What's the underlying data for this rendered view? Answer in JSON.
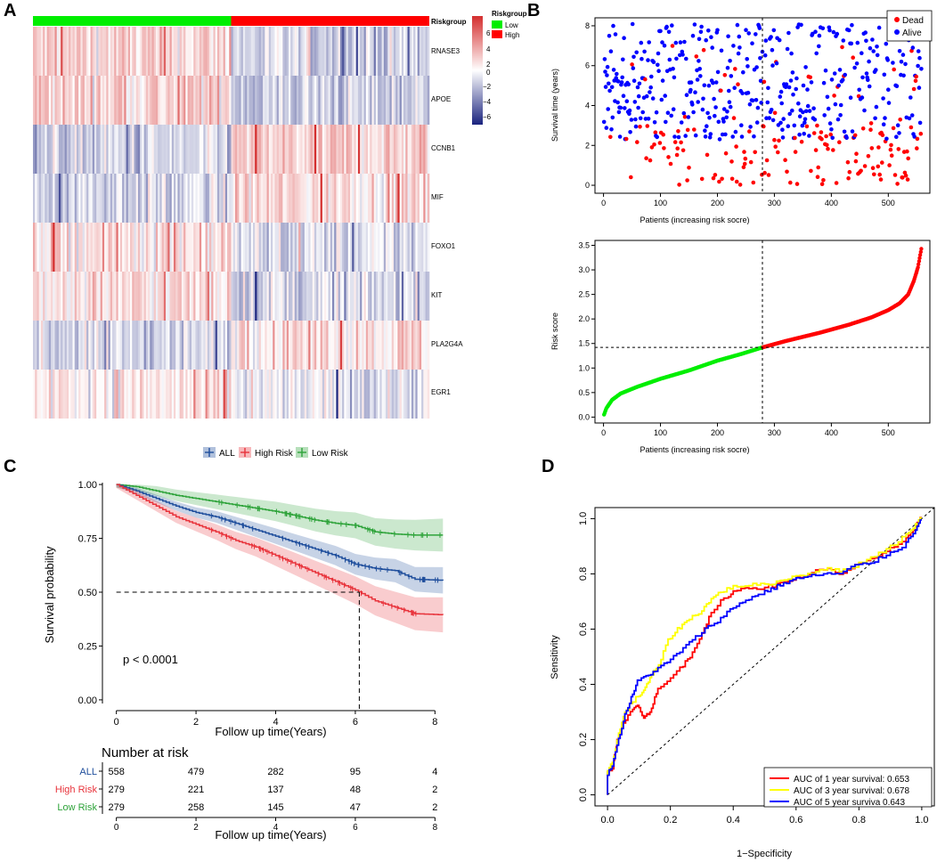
{
  "panels": {
    "A": "A",
    "B": "B",
    "C": "C",
    "D": "D"
  },
  "colors": {
    "low": "#00ee00",
    "high": "#ff0000",
    "alive": "#0000ff",
    "dead": "#ff0000",
    "heat_high": "#d42e2e",
    "heat_mid": "#ffffff",
    "heat_low": "#1a237e",
    "all": "#1f4e9c",
    "high_risk": "#e8333b",
    "low_risk": "#2ea33a",
    "roc1": "#ff0000",
    "roc3": "#ffff00",
    "roc5": "#0000ff"
  },
  "chart_data": [
    {
      "id": "A",
      "type": "heatmap",
      "genes": [
        "RNASE3",
        "APOE",
        "CCNB1",
        "MIF",
        "FOXO1",
        "KIT",
        "PLA2G4A",
        "EGR1"
      ],
      "gene_trend": [
        0.55,
        0.6,
        -0.6,
        -0.5,
        0.45,
        0.45,
        -0.5,
        0.3
      ],
      "annotation_label": "Riskgroup",
      "group_counts": {
        "Low": 279,
        "High": 279
      },
      "legend_title": "Riskgroup",
      "legend_items": [
        "Low",
        "High"
      ],
      "colorbar_ticks": [
        "6",
        "4",
        "2",
        "0",
        "−2",
        "−4",
        "−6"
      ],
      "colorbar_range": [
        -7,
        7
      ]
    },
    {
      "id": "B_top",
      "type": "scatter",
      "xlabel": "Patients (increasing risk socre)",
      "ylabel": "Survival time (years)",
      "xticks": [
        "0",
        "100",
        "200",
        "300",
        "400",
        "500"
      ],
      "yticks": [
        "0",
        "2",
        "4",
        "6",
        "8"
      ],
      "xlim": [
        -15,
        573
      ],
      "ylim": [
        -0.4,
        8.4
      ],
      "cutoff_x": 279,
      "n": 558,
      "legend": [
        "Dead",
        "Alive"
      ]
    },
    {
      "id": "B_bottom",
      "type": "scatter",
      "xlabel": "Patients (increasing risk socre)",
      "ylabel": "Risk score",
      "xticks": [
        "0",
        "100",
        "200",
        "300",
        "400",
        "500"
      ],
      "yticks": [
        "0.0",
        "0.5",
        "1.0",
        "1.5",
        "2.0",
        "2.5",
        "3.0",
        "3.5"
      ],
      "xlim": [
        -15,
        573
      ],
      "ylim": [
        -0.12,
        3.6
      ],
      "cutoff_x": 279,
      "cutoff_y": 1.42,
      "curve_points": [
        [
          1,
          0.05
        ],
        [
          5,
          0.18
        ],
        [
          15,
          0.35
        ],
        [
          30,
          0.48
        ],
        [
          60,
          0.62
        ],
        [
          100,
          0.78
        ],
        [
          150,
          0.95
        ],
        [
          200,
          1.15
        ],
        [
          240,
          1.28
        ],
        [
          279,
          1.42
        ],
        [
          320,
          1.55
        ],
        [
          380,
          1.72
        ],
        [
          430,
          1.88
        ],
        [
          470,
          2.03
        ],
        [
          500,
          2.18
        ],
        [
          520,
          2.32
        ],
        [
          535,
          2.5
        ],
        [
          545,
          2.78
        ],
        [
          552,
          3.05
        ],
        [
          558,
          3.43
        ]
      ]
    },
    {
      "id": "C",
      "type": "line",
      "legend": [
        "ALL",
        "High Risk",
        "Low Risk"
      ],
      "ylabel": "Survival probability",
      "xlabel": "Follow up time(Years)",
      "xticks": [
        "0",
        "2",
        "4",
        "6",
        "8"
      ],
      "yticks": [
        "0.00",
        "0.25",
        "0.50",
        "0.75",
        "1.00"
      ],
      "xlim": [
        -0.35,
        8.35
      ],
      "ylim": [
        -0.05,
        1.05
      ],
      "pvalue": "p < 0.0001",
      "median_time": 6.1,
      "series": [
        {
          "name": "Low Risk",
          "points": [
            [
              0,
              1
            ],
            [
              0.5,
              0.99
            ],
            [
              1,
              0.97
            ],
            [
              1.5,
              0.95
            ],
            [
              2,
              0.935
            ],
            [
              2.5,
              0.92
            ],
            [
              3,
              0.905
            ],
            [
              3.5,
              0.89
            ],
            [
              4,
              0.875
            ],
            [
              4.5,
              0.855
            ],
            [
              5,
              0.835
            ],
            [
              5.5,
              0.82
            ],
            [
              6,
              0.81
            ],
            [
              6.5,
              0.78
            ],
            [
              7,
              0.77
            ],
            [
              7.5,
              0.765
            ],
            [
              8.2,
              0.765
            ]
          ],
          "band": 0.075
        },
        {
          "name": "ALL",
          "points": [
            [
              0,
              1
            ],
            [
              0.5,
              0.97
            ],
            [
              1,
              0.935
            ],
            [
              1.5,
              0.9
            ],
            [
              2,
              0.87
            ],
            [
              2.5,
              0.85
            ],
            [
              3,
              0.82
            ],
            [
              3.5,
              0.79
            ],
            [
              4,
              0.76
            ],
            [
              4.5,
              0.73
            ],
            [
              5,
              0.7
            ],
            [
              5.5,
              0.67
            ],
            [
              6,
              0.63
            ],
            [
              6.5,
              0.61
            ],
            [
              7,
              0.6
            ],
            [
              7.5,
              0.56
            ],
            [
              8.2,
              0.555
            ]
          ],
          "band": 0.06
        },
        {
          "name": "High Risk",
          "points": [
            [
              0,
              1
            ],
            [
              0.5,
              0.95
            ],
            [
              1,
              0.9
            ],
            [
              1.5,
              0.85
            ],
            [
              2,
              0.815
            ],
            [
              2.5,
              0.78
            ],
            [
              3,
              0.74
            ],
            [
              3.5,
              0.71
            ],
            [
              4,
              0.67
            ],
            [
              4.5,
              0.63
            ],
            [
              5,
              0.59
            ],
            [
              5.5,
              0.55
            ],
            [
              6,
              0.51
            ],
            [
              6.5,
              0.46
            ],
            [
              7,
              0.43
            ],
            [
              7.5,
              0.4
            ],
            [
              8.2,
              0.395
            ]
          ],
          "band": 0.08
        }
      ],
      "risk_table_title": "Number at risk",
      "risk_table": [
        {
          "label": "ALL",
          "values": [
            "558",
            "479",
            "282",
            "95",
            "4"
          ]
        },
        {
          "label": "High Risk",
          "values": [
            "279",
            "221",
            "137",
            "48",
            "2"
          ]
        },
        {
          "label": "Low Risk",
          "values": [
            "279",
            "258",
            "145",
            "47",
            "2"
          ]
        }
      ],
      "risk_xlabel": "Follow up time(Years)"
    },
    {
      "id": "D",
      "type": "line",
      "xlabel": "1−Specificity",
      "ylabel": "Sensitivity",
      "xticks": [
        "0.0",
        "0.2",
        "0.4",
        "0.6",
        "0.8",
        "1.0"
      ],
      "yticks": [
        "0.0",
        "0.2",
        "0.4",
        "0.6",
        "0.8",
        "1.0"
      ],
      "xlim": [
        -0.04,
        1.04
      ],
      "ylim": [
        -0.04,
        1.04
      ],
      "legend": [
        "AUC of 1 year survival:  0.653",
        "AUC of 3 year survival:  0.678",
        "AUC of 5 year surviva 0.643"
      ],
      "series": [
        {
          "name": "AUC of 1 year survival",
          "points": [
            [
              0,
              0
            ],
            [
              0,
              0.07
            ],
            [
              0.02,
              0.1
            ],
            [
              0.03,
              0.18
            ],
            [
              0.05,
              0.24
            ],
            [
              0.08,
              0.3
            ],
            [
              0.1,
              0.33
            ],
            [
              0.12,
              0.28
            ],
            [
              0.14,
              0.3
            ],
            [
              0.16,
              0.37
            ],
            [
              0.2,
              0.41
            ],
            [
              0.24,
              0.46
            ],
            [
              0.27,
              0.5
            ],
            [
              0.3,
              0.57
            ],
            [
              0.33,
              0.64
            ],
            [
              0.37,
              0.7
            ],
            [
              0.4,
              0.73
            ],
            [
              0.45,
              0.75
            ],
            [
              0.5,
              0.75
            ],
            [
              0.55,
              0.76
            ],
            [
              0.6,
              0.78
            ],
            [
              0.65,
              0.8
            ],
            [
              0.7,
              0.82
            ],
            [
              0.75,
              0.8
            ],
            [
              0.8,
              0.83
            ],
            [
              0.85,
              0.85
            ],
            [
              0.9,
              0.88
            ],
            [
              0.95,
              0.92
            ],
            [
              0.98,
              0.96
            ],
            [
              1,
              1
            ]
          ]
        },
        {
          "name": "AUC of 3 year survival",
          "points": [
            [
              0,
              0
            ],
            [
              0,
              0.08
            ],
            [
              0.02,
              0.12
            ],
            [
              0.04,
              0.22
            ],
            [
              0.06,
              0.3
            ],
            [
              0.1,
              0.35
            ],
            [
              0.12,
              0.38
            ],
            [
              0.14,
              0.42
            ],
            [
              0.17,
              0.47
            ],
            [
              0.2,
              0.56
            ],
            [
              0.23,
              0.6
            ],
            [
              0.26,
              0.63
            ],
            [
              0.3,
              0.66
            ],
            [
              0.33,
              0.7
            ],
            [
              0.36,
              0.73
            ],
            [
              0.4,
              0.75
            ],
            [
              0.45,
              0.76
            ],
            [
              0.5,
              0.76
            ],
            [
              0.55,
              0.77
            ],
            [
              0.6,
              0.79
            ],
            [
              0.65,
              0.8
            ],
            [
              0.7,
              0.82
            ],
            [
              0.75,
              0.81
            ],
            [
              0.8,
              0.83
            ],
            [
              0.85,
              0.86
            ],
            [
              0.9,
              0.89
            ],
            [
              0.95,
              0.93
            ],
            [
              0.98,
              0.97
            ],
            [
              1,
              1
            ]
          ]
        },
        {
          "name": "AUC of 5 year surviva",
          "points": [
            [
              0,
              0
            ],
            [
              0,
              0.06
            ],
            [
              0.02,
              0.11
            ],
            [
              0.04,
              0.2
            ],
            [
              0.06,
              0.29
            ],
            [
              0.08,
              0.35
            ],
            [
              0.1,
              0.41
            ],
            [
              0.13,
              0.43
            ],
            [
              0.16,
              0.45
            ],
            [
              0.2,
              0.48
            ],
            [
              0.24,
              0.52
            ],
            [
              0.28,
              0.56
            ],
            [
              0.32,
              0.6
            ],
            [
              0.36,
              0.63
            ],
            [
              0.4,
              0.67
            ],
            [
              0.44,
              0.7
            ],
            [
              0.48,
              0.72
            ],
            [
              0.52,
              0.74
            ],
            [
              0.56,
              0.76
            ],
            [
              0.6,
              0.78
            ],
            [
              0.65,
              0.79
            ],
            [
              0.7,
              0.8
            ],
            [
              0.75,
              0.8
            ],
            [
              0.8,
              0.83
            ],
            [
              0.85,
              0.84
            ],
            [
              0.9,
              0.87
            ],
            [
              0.95,
              0.9
            ],
            [
              0.98,
              0.95
            ],
            [
              1,
              1
            ]
          ]
        }
      ]
    }
  ]
}
